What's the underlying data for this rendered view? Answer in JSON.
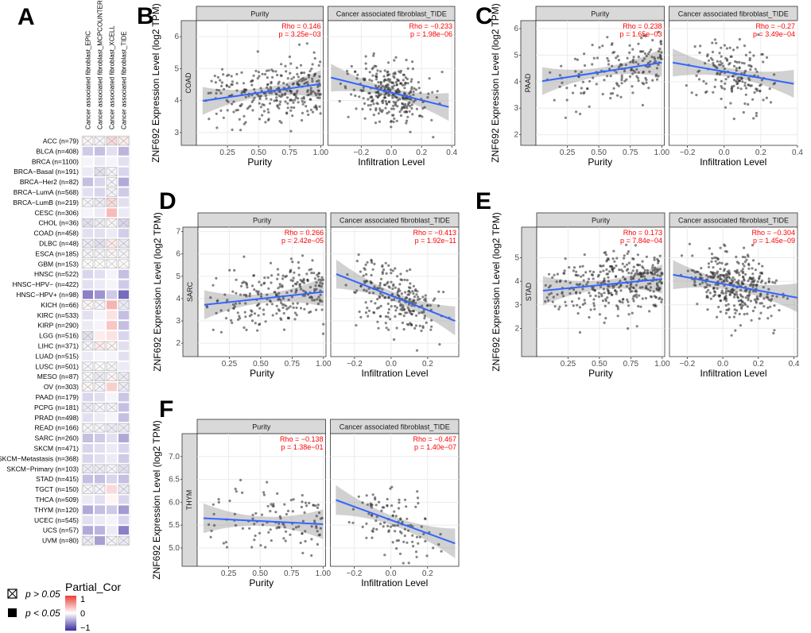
{
  "heatmap": {
    "panel_label": "A",
    "columns": [
      "Cancer associated fibroblast_EPIC",
      "Cancer associated fibroblast_MCPCOUNTER",
      "Cancer associated fibroblast_XCELL",
      "Cancer associated fibroblast_TIDE"
    ],
    "rows": [
      "ACC (n=79)",
      "BLCA (n=408)",
      "BRCA (n=1100)",
      "BRCA−Basal (n=191)",
      "BRCA−Her2 (n=82)",
      "BRCA−LumA (n=568)",
      "BRCA−LumB (n=219)",
      "CESC (n=306)",
      "CHOL (n=36)",
      "COAD (n=458)",
      "DLBC (n=48)",
      "ESCA (n=185)",
      "GBM (n=153)",
      "HNSC (n=522)",
      "HNSC−HPV− (n=422)",
      "HNSC−HPV+ (n=98)",
      "KICH (n=66)",
      "KIRC (n=533)",
      "KIRP (n=290)",
      "LGG (n=516)",
      "LIHC (n=371)",
      "LUAD (n=515)",
      "LUSC (n=501)",
      "MESO (n=87)",
      "OV (n=303)",
      "PAAD (n=179)",
      "PCPG (n=181)",
      "PRAD (n=498)",
      "READ (n=166)",
      "SARC (n=260)",
      "SKCM (n=471)",
      "SKCM−Metastasis (n=368)",
      "SKCM−Primary (n=103)",
      "STAD (n=415)",
      "TGCT (n=150)",
      "THCA (n=509)",
      "THYM (n=120)",
      "UCEC (n=545)",
      "UCS (n=57)",
      "UVM (n=80)"
    ],
    "values": [
      [
        0.05,
        -0.05,
        0.2,
        0.1
      ],
      [
        -0.25,
        -0.3,
        -0.15,
        -0.35
      ],
      [
        -0.05,
        -0.1,
        -0.05,
        -0.15
      ],
      [
        -0.1,
        -0.15,
        -0.05,
        -0.2
      ],
      [
        -0.3,
        -0.2,
        -0.05,
        -0.4
      ],
      [
        -0.15,
        -0.2,
        -0.05,
        -0.25
      ],
      [
        -0.05,
        -0.1,
        0.2,
        -0.15
      ],
      [
        -0.05,
        -0.1,
        0.35,
        -0.1
      ],
      [
        -0.15,
        -0.1,
        0.05,
        -0.2
      ],
      [
        -0.15,
        -0.15,
        -0.1,
        -0.23
      ],
      [
        -0.1,
        -0.15,
        0.1,
        -0.1
      ],
      [
        -0.05,
        -0.05,
        0.05,
        -0.05
      ],
      [
        0.02,
        0.02,
        -0.02,
        0.03
      ],
      [
        -0.2,
        -0.15,
        -0.05,
        -0.3
      ],
      [
        -0.15,
        -0.1,
        -0.05,
        -0.25
      ],
      [
        -0.6,
        -0.5,
        -0.25,
        -0.7
      ],
      [
        0.05,
        -0.05,
        0.4,
        -0.1
      ],
      [
        -0.15,
        -0.05,
        0.15,
        -0.3
      ],
      [
        -0.1,
        -0.05,
        0.3,
        -0.3
      ],
      [
        -0.15,
        0.1,
        0.15,
        -0.2
      ],
      [
        -0.05,
        0.1,
        0.05,
        -0.15
      ],
      [
        -0.1,
        -0.05,
        -0.05,
        -0.15
      ],
      [
        -0.05,
        -0.02,
        -0.05,
        -0.1
      ],
      [
        -0.05,
        -0.1,
        0.05,
        -0.1
      ],
      [
        0.05,
        -0.05,
        0.25,
        -0.1
      ],
      [
        -0.2,
        -0.15,
        -0.05,
        -0.27
      ],
      [
        -0.1,
        -0.05,
        -0.05,
        -0.3
      ],
      [
        -0.15,
        -0.1,
        -0.05,
        -0.3
      ],
      [
        -0.05,
        -0.05,
        -0.1,
        -0.1
      ],
      [
        -0.3,
        -0.25,
        -0.15,
        -0.41
      ],
      [
        -0.2,
        -0.15,
        -0.1,
        -0.2
      ],
      [
        -0.2,
        -0.15,
        -0.1,
        -0.25
      ],
      [
        -0.1,
        -0.1,
        -0.05,
        -0.15
      ],
      [
        -0.3,
        -0.3,
        -0.2,
        -0.3
      ],
      [
        -0.05,
        -0.05,
        0.2,
        -0.1
      ],
      [
        -0.1,
        -0.15,
        0.05,
        -0.2
      ],
      [
        -0.4,
        -0.3,
        -0.25,
        -0.47
      ],
      [
        -0.15,
        -0.1,
        -0.05,
        -0.2
      ],
      [
        -0.4,
        -0.35,
        -0.1,
        -0.6
      ],
      [
        -0.1,
        -0.45,
        -0.05,
        -0.1
      ]
    ],
    "nonsig": [
      [
        0,
        1,
        2,
        3
      ],
      [],
      [],
      [
        1,
        2
      ],
      [
        2
      ],
      [
        2
      ],
      [
        0,
        1,
        2
      ],
      [],
      [
        0,
        1,
        2,
        3
      ],
      [],
      [
        0,
        1,
        2,
        3
      ],
      [
        0,
        1,
        2,
        3
      ],
      [
        0,
        1,
        2,
        3
      ],
      [],
      [],
      [],
      [
        0,
        1,
        3
      ],
      [],
      [],
      [
        0
      ],
      [
        0,
        1,
        2
      ],
      [],
      [
        0,
        1,
        2
      ],
      [
        0,
        1,
        2,
        3
      ],
      [
        0,
        1,
        3
      ],
      [],
      [
        0,
        1,
        2
      ],
      [],
      [
        0,
        1,
        2,
        3
      ],
      [],
      [],
      [],
      [
        0,
        1,
        2,
        3
      ],
      [],
      [
        0,
        1,
        3
      ],
      [],
      [],
      [],
      [],
      [
        0,
        2,
        3
      ]
    ],
    "legend_sig": [
      "p > 0.05",
      "p < 0.05"
    ],
    "legend_title": "Partial_Cor",
    "scale_ticks": [
      "1",
      "0",
      "−1"
    ],
    "colors": {
      "pos": "#e8403a",
      "neg": "#3d2b9e",
      "mid": "#ffffff"
    }
  },
  "chart_data": [
    {
      "type": "scatter",
      "label": "B",
      "cancer": "COAD",
      "ylabel": "ZNF692 Expression Level (log2 TPM)",
      "ylim": [
        2.6,
        6.5
      ],
      "yticks": [
        3,
        4,
        5,
        6
      ],
      "left": {
        "title": "Purity",
        "xlabel": "Purity",
        "xlim": [
          0,
          1.02
        ],
        "xticks": [
          0.25,
          0.5,
          0.75,
          1.0
        ],
        "xtick_labels": [
          "0.25",
          "0.50",
          "0.75",
          "1.00"
        ],
        "rho": "Rho = 0.146",
        "p": "p = 3.25e−03",
        "line": [
          [
            0.05,
            3.99
          ],
          [
            1.0,
            4.52
          ]
        ],
        "n": 300
      },
      "right": {
        "title": "Cancer associated fibroblast_TIDE",
        "xlabel": "Infiltration Level",
        "xlim": [
          -0.42,
          0.42
        ],
        "xticks": [
          -0.2,
          0,
          0.2,
          0.4
        ],
        "xtick_labels": [
          "−0.2",
          "0.0",
          "0.2",
          "0.4"
        ],
        "rho": "Rho = −0.233",
        "p": "p = 1.98e−06",
        "line": [
          [
            -0.4,
            4.72
          ],
          [
            0.38,
            3.8
          ]
        ],
        "n": 300
      }
    },
    {
      "type": "scatter",
      "label": "C",
      "cancer": "PAAD",
      "ylabel": "ZNF692 Expression Level (log2 TPM)",
      "ylim": [
        1.6,
        6.3
      ],
      "yticks": [
        2,
        3,
        4,
        5,
        6
      ],
      "left": {
        "title": "Purity",
        "xlabel": "Purity",
        "xlim": [
          0,
          1.02
        ],
        "xticks": [
          0.25,
          0.5,
          0.75,
          1.0
        ],
        "xtick_labels": [
          "0.25",
          "0.50",
          "0.75",
          "1.00"
        ],
        "rho": "Rho = 0.238",
        "p": "p = 1.65e−03",
        "line": [
          [
            0.05,
            4.02
          ],
          [
            1.0,
            4.72
          ]
        ],
        "n": 170
      },
      "right": {
        "title": "Cancer associated fibroblast_TIDE",
        "xlabel": "Infiltration Level",
        "xlim": [
          -0.3,
          0.4
        ],
        "xticks": [
          -0.2,
          0,
          0.2,
          0.4
        ],
        "xtick_labels": [
          "−0.2",
          "0.0",
          "0.2",
          "0.4"
        ],
        "rho": "Rho = −0.27",
        "p": "p = 3.49e−04",
        "line": [
          [
            -0.28,
            4.72
          ],
          [
            0.38,
            3.92
          ]
        ],
        "n": 170
      }
    },
    {
      "type": "scatter",
      "label": "D",
      "cancer": "SARC",
      "ylabel": "ZNF692 Expression Level (log2 TPM)",
      "ylim": [
        1.4,
        7.2
      ],
      "yticks": [
        2,
        3,
        4,
        5,
        6,
        7
      ],
      "left": {
        "title": "Purity",
        "xlabel": "Purity",
        "xlim": [
          0,
          1.02
        ],
        "xticks": [
          0.25,
          0.5,
          0.75,
          1.0
        ],
        "xtick_labels": [
          "0.25",
          "0.50",
          "0.75",
          "1.00"
        ],
        "rho": "Rho = 0.266",
        "p": "p = 2.42e−05",
        "line": [
          [
            0.05,
            3.72
          ],
          [
            1.0,
            4.3
          ]
        ],
        "n": 240
      },
      "right": {
        "title": "Cancer associated fibroblast_TIDE",
        "xlabel": "Infiltration Level",
        "xlim": [
          -0.33,
          0.37
        ],
        "xticks": [
          -0.2,
          0,
          0.2
        ],
        "xtick_labels": [
          "−0.2",
          "0.0",
          "0.2"
        ],
        "rho": "Rho = −0.413",
        "p": "p = 1.92e−11",
        "line": [
          [
            -0.3,
            5.1
          ],
          [
            0.35,
            3.0
          ]
        ],
        "n": 240
      }
    },
    {
      "type": "scatter",
      "label": "E",
      "cancer": "STAD",
      "ylabel": "ZNF692 Expression Level (log2 TPM)",
      "ylim": [
        0.8,
        6.3
      ],
      "yticks": [
        2,
        3,
        4,
        5
      ],
      "left": {
        "title": "Purity",
        "xlabel": "Purity",
        "xlim": [
          0,
          1.02
        ],
        "xticks": [
          0.25,
          0.5,
          0.75,
          1.0
        ],
        "xtick_labels": [
          "0.25",
          "0.50",
          "0.75",
          "1.00"
        ],
        "rho": "Rho = 0.173",
        "p": "p = 7.84e−04",
        "line": [
          [
            0.05,
            3.6
          ],
          [
            1.0,
            4.1
          ]
        ],
        "n": 350
      },
      "right": {
        "title": "Cancer associated fibroblast_TIDE",
        "xlabel": "Infiltration Level",
        "xlim": [
          -0.3,
          0.42
        ],
        "xticks": [
          -0.2,
          0,
          0.2,
          0.4
        ],
        "xtick_labels": [
          "−0.2",
          "0.0",
          "0.2",
          "0.4"
        ],
        "rho": "Rho = −0.304",
        "p": "p = 1.45e−09",
        "line": [
          [
            -0.28,
            4.28
          ],
          [
            0.42,
            3.3
          ]
        ],
        "n": 350
      }
    },
    {
      "type": "scatter",
      "label": "F",
      "cancer": "THYM",
      "ylabel": "ZNF692 Expression Level (log2 TPM)",
      "ylim": [
        4.6,
        7.5
      ],
      "yticks": [
        5.0,
        5.5,
        6.0,
        6.5,
        7.0
      ],
      "left": {
        "title": "Purity",
        "xlabel": "Purity",
        "xlim": [
          0,
          1.02
        ],
        "xticks": [
          0.25,
          0.5,
          0.75,
          1.0
        ],
        "xtick_labels": [
          "0.25",
          "0.50",
          "0.75",
          "1.00"
        ],
        "rho": "Rho = −0.138",
        "p": "p = 1.38e−01",
        "line": [
          [
            0.05,
            5.65
          ],
          [
            1.0,
            5.52
          ]
        ],
        "n": 110
      },
      "right": {
        "title": "Cancer associated fibroblast_TIDE",
        "xlabel": "Infiltration Level",
        "xlim": [
          -0.33,
          0.37
        ],
        "xticks": [
          -0.2,
          0,
          0.2
        ],
        "xtick_labels": [
          "−0.2",
          "0.0",
          "0.2"
        ],
        "rho": "Rho = −0.467",
        "p": "p = 1.40e−07",
        "line": [
          [
            -0.3,
            6.05
          ],
          [
            0.35,
            5.1
          ]
        ],
        "n": 110
      }
    }
  ]
}
